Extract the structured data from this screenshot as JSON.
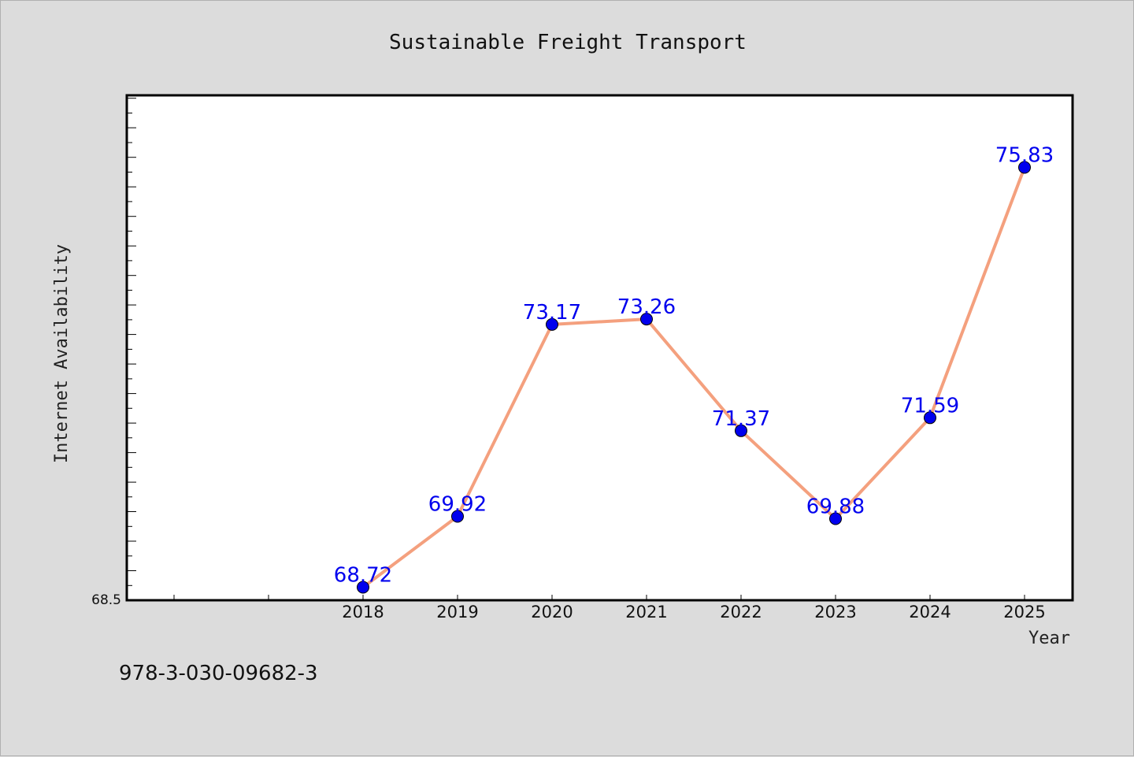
{
  "chart_data": {
    "type": "line",
    "title": "Sustainable Freight Transport",
    "xlabel": "Year",
    "ylabel": "Internet Availability",
    "categories": [
      "2018",
      "2019",
      "2020",
      "2021",
      "2022",
      "2023",
      "2024",
      "2025"
    ],
    "series": [
      {
        "values": [
          68.72,
          69.92,
          73.17,
          73.26,
          71.37,
          69.88,
          71.59,
          75.83
        ],
        "labels": [
          "68.72",
          "69.92",
          "73.17",
          "73.26",
          "71.37",
          "69.88",
          "71.59",
          "75.83"
        ]
      }
    ],
    "ylim": [
      68.5,
      77.05
    ],
    "y_min_label": "68.5",
    "grid": false,
    "line_color": "#f4a07e",
    "marker_color": "#0000ee",
    "label_color": "#0000ee"
  },
  "footer": {
    "isbn": "978-3-030-09682-3"
  }
}
